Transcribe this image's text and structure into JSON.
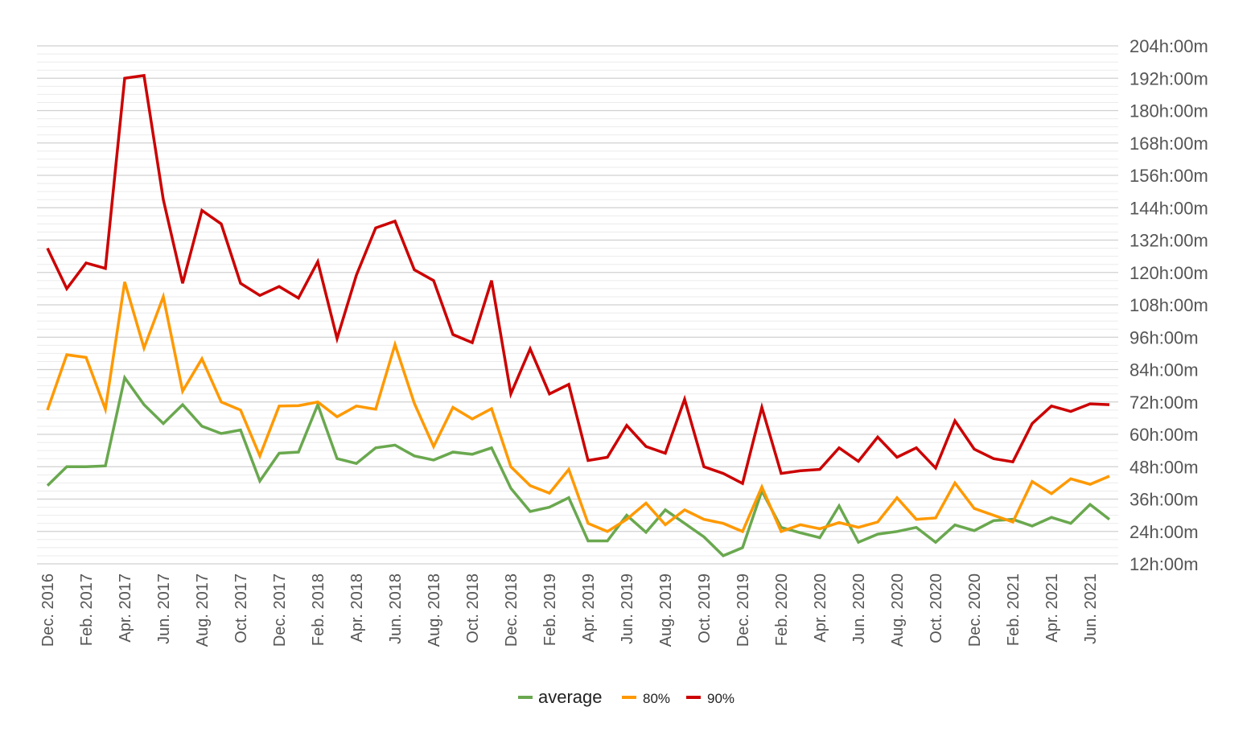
{
  "chart_data": {
    "type": "line",
    "title": "",
    "xlabel": "",
    "ylabel": "",
    "y_axis_position": "right",
    "ylim": [
      12,
      204
    ],
    "y_major_step": 12,
    "y_minor_step": 3,
    "y_tick_labels": [
      "12h:00m",
      "24h:00m",
      "36h:00m",
      "48h:00m",
      "60h:00m",
      "72h:00m",
      "84h:00m",
      "96h:00m",
      "108h:00m",
      "120h:00m",
      "132h:00m",
      "144h:00m",
      "156h:00m",
      "168h:00m",
      "180h:00m",
      "192h:00m",
      "204h:00m"
    ],
    "grid": true,
    "legend_position": "bottom-center",
    "x": [
      "Dec. 2016",
      "Jan. 2017",
      "Feb. 2017",
      "Mar. 2017",
      "Apr. 2017",
      "May. 2017",
      "Jun. 2017",
      "Jul. 2017",
      "Aug. 2017",
      "Sep. 2017",
      "Oct. 2017",
      "Nov. 2017",
      "Dec. 2017",
      "Jan. 2018",
      "Feb. 2018",
      "Mar. 2018",
      "Apr. 2018",
      "May. 2018",
      "Jun. 2018",
      "Jul. 2018",
      "Aug. 2018",
      "Sep. 2018",
      "Oct. 2018",
      "Nov. 2018",
      "Dec. 2018",
      "Jan. 2019",
      "Feb. 2019",
      "Mar. 2019",
      "Apr. 2019",
      "May. 2019",
      "Jun. 2019",
      "Jul. 2019",
      "Aug. 2019",
      "Sep. 2019",
      "Oct. 2019",
      "Nov. 2019",
      "Dec. 2019",
      "Jan. 2020",
      "Feb. 2020",
      "Mar. 2020",
      "Apr. 2020",
      "May. 2020",
      "Jun. 2020",
      "Jul. 2020",
      "Aug. 2020",
      "Sep. 2020",
      "Oct. 2020",
      "Nov. 2020",
      "Dec. 2020",
      "Jan. 2021",
      "Feb. 2021",
      "Mar. 2021",
      "Apr. 2021",
      "May. 2021",
      "Jun. 2021",
      "Jul. 2021"
    ],
    "x_tick_labels": [
      "Dec. 2016",
      "Feb. 2017",
      "Apr. 2017",
      "Jun. 2017",
      "Aug. 2017",
      "Oct. 2017",
      "Dec. 2017",
      "Feb. 2018",
      "Apr. 2018",
      "Jun. 2018",
      "Aug. 2018",
      "Oct. 2018",
      "Dec. 2018",
      "Feb. 2019",
      "Apr. 2019",
      "Jun. 2019",
      "Aug. 2019",
      "Oct. 2019",
      "Dec. 2019",
      "Feb. 2020",
      "Apr. 2020",
      "Jun. 2020",
      "Aug. 2020",
      "Oct. 2020",
      "Dec. 2020",
      "Feb. 2021",
      "Apr. 2021",
      "Jun. 2021"
    ],
    "series": [
      {
        "name": "average",
        "color": "#6aa84f",
        "values": [
          41,
          48,
          48,
          48.3,
          81,
          71,
          64,
          71,
          63,
          60.3,
          61.6,
          42.7,
          53,
          53.4,
          71,
          51,
          49.2,
          55,
          56,
          52,
          50.5,
          53.4,
          52.6,
          55,
          40,
          31.4,
          33,
          36.5,
          20.5,
          20.5,
          30,
          23.7,
          32,
          27,
          22,
          15,
          18,
          39,
          25.5,
          23.5,
          21.7,
          33.5,
          20,
          23,
          24,
          25.5,
          20,
          26.4,
          24.3,
          28,
          28.5,
          26,
          29.2,
          27,
          34,
          28.5
        ]
      },
      {
        "name": "80%",
        "color": "#ff9900",
        "values": [
          69,
          89.5,
          88.5,
          69.3,
          116.5,
          92,
          111,
          76,
          88,
          72,
          69,
          52,
          70.5,
          70.6,
          72,
          66.5,
          70.5,
          69.3,
          93.3,
          71.5,
          55.5,
          70,
          65.7,
          69.5,
          48,
          41,
          38.2,
          47,
          27,
          24,
          28.5,
          34.5,
          26.5,
          32,
          28.5,
          27,
          24,
          40.5,
          24,
          26.5,
          25,
          27.3,
          25.5,
          27.5,
          36.5,
          28.5,
          29,
          42,
          32.5,
          30,
          27.5,
          42.5,
          38,
          43.5,
          41.5,
          44.5
        ]
      },
      {
        "name": "90%",
        "color": "#cc0000",
        "values": [
          129,
          114,
          123.5,
          121.5,
          192,
          193,
          147,
          116,
          143,
          138,
          116,
          111.5,
          114.8,
          110.5,
          124,
          95.5,
          119,
          136.5,
          139,
          121,
          117,
          97,
          94,
          117,
          75,
          91.7,
          75,
          78.5,
          50.3,
          51.5,
          63.3,
          55.5,
          53,
          73,
          48,
          45.5,
          41.8,
          70,
          45.5,
          46.5,
          47,
          55,
          50,
          59,
          51.5,
          55,
          47.5,
          65,
          54.5,
          51,
          49.8,
          64,
          70.5,
          68.5,
          71.3,
          71
        ]
      }
    ]
  }
}
